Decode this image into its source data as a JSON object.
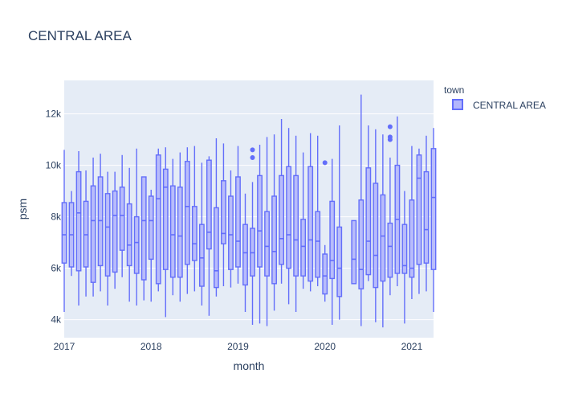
{
  "chart_data": {
    "type": "box",
    "title": "CENTRAL AREA",
    "xlabel": "month",
    "ylabel": "psm",
    "x_tick_labels": [
      "2017",
      "2018",
      "2019",
      "2020",
      "2021"
    ],
    "y_tick_labels": [
      "4k",
      "6k",
      "8k",
      "10k",
      "12k"
    ],
    "y_ticks": [
      4000,
      6000,
      8000,
      10000,
      12000
    ],
    "ylim": [
      3300,
      13300
    ],
    "xlim": [
      "2017-01",
      "2021-04"
    ],
    "grid": true,
    "legend": {
      "title": "town",
      "position": "right",
      "entries": [
        "CENTRAL AREA"
      ]
    },
    "colors": {
      "box_line": "#636efa",
      "box_fill": "#b3b7fc",
      "plot_bg": "#e5ecf6",
      "grid": "#ffffff",
      "text": "#2a3f5f"
    },
    "series": [
      {
        "name": "CENTRAL AREA",
        "boxes": [
          {
            "month": "2017-01",
            "min": 4300,
            "q1": 6200,
            "median": 7300,
            "q3": 8550,
            "max": 10600
          },
          {
            "month": "2017-02",
            "min": 5700,
            "q1": 6050,
            "median": 7300,
            "q3": 8550,
            "max": 9000
          },
          {
            "month": "2017-03",
            "min": 4550,
            "q1": 5900,
            "median": 8150,
            "q3": 9750,
            "max": 10550
          },
          {
            "month": "2017-04",
            "min": 4900,
            "q1": 6050,
            "median": 7300,
            "q3": 8600,
            "max": 9800
          },
          {
            "month": "2017-05",
            "min": 4900,
            "q1": 5450,
            "median": 7850,
            "q3": 9200,
            "max": 10300
          },
          {
            "month": "2017-06",
            "min": 5100,
            "q1": 6100,
            "median": 7850,
            "q3": 9550,
            "max": 10450
          },
          {
            "month": "2017-07",
            "min": 4550,
            "q1": 5700,
            "median": 7600,
            "q3": 8900,
            "max": 9750
          },
          {
            "month": "2017-08",
            "min": 5200,
            "q1": 5850,
            "median": 8050,
            "q3": 9000,
            "max": 9750
          },
          {
            "month": "2017-09",
            "min": 5650,
            "q1": 6700,
            "median": 8050,
            "q3": 9150,
            "max": 10400
          },
          {
            "month": "2017-10",
            "min": 4700,
            "q1": 6100,
            "median": 6900,
            "q3": 8500,
            "max": 9900
          },
          {
            "month": "2017-11",
            "min": 4550,
            "q1": 5800,
            "median": 7000,
            "q3": 8000,
            "max": 10650
          },
          {
            "month": "2017-12",
            "min": 4750,
            "q1": 5550,
            "median": 7850,
            "q3": 9550,
            "max": 9550
          },
          {
            "month": "2018-01",
            "min": 4700,
            "q1": 6350,
            "median": 7850,
            "q3": 8800,
            "max": 9050
          },
          {
            "month": "2018-02",
            "min": 5100,
            "q1": 5400,
            "median": 8700,
            "q3": 10400,
            "max": 10650
          },
          {
            "month": "2018-03",
            "min": 4100,
            "q1": 5950,
            "median": 9150,
            "q3": 9850,
            "max": 10700
          },
          {
            "month": "2018-04",
            "min": 4950,
            "q1": 5650,
            "median": 7300,
            "q3": 9200,
            "max": 10250
          },
          {
            "month": "2018-05",
            "min": 4700,
            "q1": 5650,
            "median": 7250,
            "q3": 9150,
            "max": 10500
          },
          {
            "month": "2018-06",
            "min": 5000,
            "q1": 6150,
            "median": 8400,
            "q3": 10150,
            "max": 10700
          },
          {
            "month": "2018-07",
            "min": 5100,
            "q1": 6300,
            "median": 6950,
            "q3": 8400,
            "max": 10750
          },
          {
            "month": "2018-08",
            "min": 4550,
            "q1": 5300,
            "median": 6400,
            "q3": 7700,
            "max": 10100
          },
          {
            "month": "2018-09",
            "min": 4150,
            "q1": 6750,
            "median": 7400,
            "q3": 10200,
            "max": 10350
          },
          {
            "month": "2018-10",
            "min": 4900,
            "q1": 5250,
            "median": 5900,
            "q3": 8350,
            "max": 11050
          },
          {
            "month": "2018-11",
            "min": 5300,
            "q1": 6950,
            "median": 7350,
            "q3": 9400,
            "max": 10850
          },
          {
            "month": "2018-12",
            "min": 5250,
            "q1": 5950,
            "median": 7300,
            "q3": 8800,
            "max": 9800
          },
          {
            "month": "2019-01",
            "min": 5400,
            "q1": 6050,
            "median": 7050,
            "q3": 9550,
            "max": 10750
          },
          {
            "month": "2019-02",
            "min": 4300,
            "q1": 5350,
            "median": 6600,
            "q3": 7700,
            "max": 8900
          },
          {
            "month": "2019-03",
            "min": 3800,
            "q1": 5700,
            "median": 6600,
            "q3": 7550,
            "max": 9350,
            "outliers": [
              10300,
              10600
            ]
          },
          {
            "month": "2019-04",
            "min": 3850,
            "q1": 6050,
            "median": 7450,
            "q3": 9600,
            "max": 10800
          },
          {
            "month": "2019-05",
            "min": 3750,
            "q1": 5700,
            "median": 6850,
            "q3": 8200,
            "max": 11100
          },
          {
            "month": "2019-06",
            "min": 4350,
            "q1": 5400,
            "median": 6650,
            "q3": 8800,
            "max": 11200
          },
          {
            "month": "2019-07",
            "min": 5400,
            "q1": 6150,
            "median": 7150,
            "q3": 9600,
            "max": 11800
          },
          {
            "month": "2019-08",
            "min": 4600,
            "q1": 6000,
            "median": 7300,
            "q3": 9950,
            "max": 11450
          },
          {
            "month": "2019-09",
            "min": 4300,
            "q1": 5700,
            "median": 7100,
            "q3": 9600,
            "max": 11150
          },
          {
            "month": "2019-10",
            "min": 5200,
            "q1": 5700,
            "median": 6850,
            "q3": 7900,
            "max": 10500
          },
          {
            "month": "2019-11",
            "min": 5100,
            "q1": 5500,
            "median": 7100,
            "q3": 9950,
            "max": 11250
          },
          {
            "month": "2019-12",
            "min": 5300,
            "q1": 5650,
            "median": 7050,
            "q3": 8200,
            "max": 11150
          },
          {
            "month": "2020-01",
            "min": 4700,
            "q1": 5000,
            "median": 5700,
            "q3": 6550,
            "max": 6900,
            "outliers": [
              10100
            ]
          },
          {
            "month": "2020-02",
            "min": 3800,
            "q1": 5600,
            "median": 6300,
            "q3": 8600,
            "max": 10250
          },
          {
            "month": "2020-03",
            "min": 4000,
            "q1": 4900,
            "median": 6000,
            "q3": 7600,
            "max": 11550
          },
          {
            "month": "2020-05",
            "min": 5400,
            "q1": 5400,
            "median": 6350,
            "q3": 7850,
            "max": 7850
          },
          {
            "month": "2020-06",
            "min": 3750,
            "q1": 5200,
            "median": 5950,
            "q3": 8650,
            "max": 12750
          },
          {
            "month": "2020-07",
            "min": 5500,
            "q1": 5750,
            "median": 7050,
            "q3": 9900,
            "max": 11550
          },
          {
            "month": "2020-08",
            "min": 3900,
            "q1": 5250,
            "median": 6500,
            "q3": 9300,
            "max": 11400
          },
          {
            "month": "2020-09",
            "min": 3700,
            "q1": 5500,
            "median": 7250,
            "q3": 8850,
            "max": 11200
          },
          {
            "month": "2020-10",
            "min": 4950,
            "q1": 5650,
            "median": 6850,
            "q3": 7750,
            "max": 10300,
            "outliers": [
              11000,
              11100,
              11500
            ]
          },
          {
            "month": "2020-11",
            "min": 5300,
            "q1": 5800,
            "median": 7900,
            "q3": 10000,
            "max": 11900
          },
          {
            "month": "2020-12",
            "min": 3850,
            "q1": 5800,
            "median": 6100,
            "q3": 7700,
            "max": 9000
          },
          {
            "month": "2021-01",
            "min": 4800,
            "q1": 5650,
            "median": 6000,
            "q3": 8650,
            "max": 10750
          },
          {
            "month": "2021-02",
            "min": 5000,
            "q1": 6150,
            "median": 9500,
            "q3": 10400,
            "max": 10650
          },
          {
            "month": "2021-03",
            "min": 5100,
            "q1": 6200,
            "median": 7500,
            "q3": 9750,
            "max": 11150
          },
          {
            "month": "2021-04",
            "min": 4300,
            "q1": 5950,
            "median": 8750,
            "q3": 10650,
            "max": 11450
          }
        ]
      }
    ]
  }
}
